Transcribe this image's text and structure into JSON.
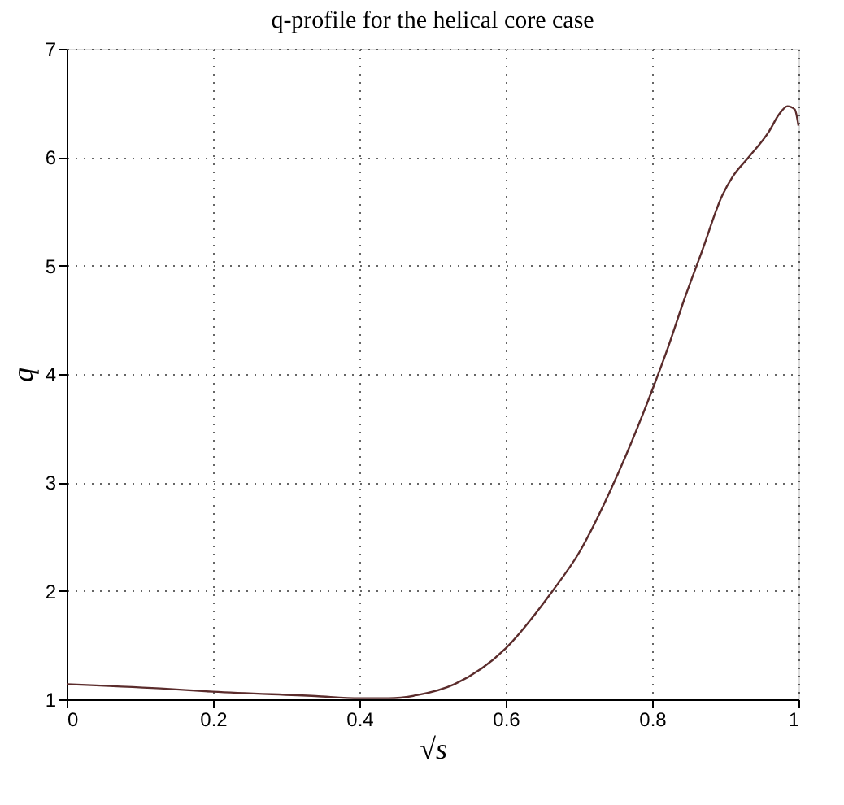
{
  "chart_data": {
    "type": "line",
    "title": "q-profile for the helical core case",
    "xlabel": "√s",
    "ylabel": "q",
    "x": [
      0,
      0.128,
      0.2,
      0.34,
      0.4,
      0.44,
      0.48,
      0.53,
      0.6,
      0.664,
      0.7,
      0.748,
      0.8,
      0.822,
      0.844,
      0.868,
      0.896,
      0.91,
      0.932,
      0.96,
      0.973,
      0.985,
      0.995,
      1.0
    ],
    "series": [
      {
        "color": "#5b2c2c",
        "values": [
          1.14,
          1.1,
          1.07,
          1.03,
          1.01,
          1.01,
          1.04,
          1.14,
          1.47,
          2.0,
          2.35,
          3.0,
          3.85,
          4.25,
          4.69,
          5.13,
          5.65,
          5.82,
          6.0,
          6.24,
          6.39,
          6.47,
          6.44,
          6.29
        ]
      }
    ],
    "xlim": [
      0,
      1
    ],
    "ylim": [
      1,
      7
    ],
    "xticks": [
      0,
      0.2,
      0.4,
      0.6,
      0.8,
      1
    ],
    "yticks": [
      1,
      2,
      3,
      4,
      5,
      6,
      7
    ],
    "grid": true,
    "line_style": "solid",
    "marker": "none"
  }
}
